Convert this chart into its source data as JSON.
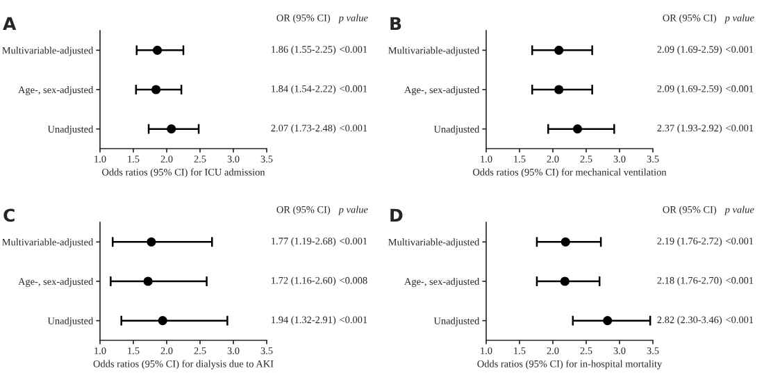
{
  "chart_data": [
    {
      "type": "scatter",
      "title": "A",
      "orientation": "horizontal",
      "xlabel": "Odds ratios (95% CI) for ICU admission",
      "categories": [
        "Multivariable-adjusted",
        "Age-, sex-adjusted",
        "Unadjusted"
      ],
      "series": [
        {
          "color": "#000000",
          "values": [
            1.86,
            1.84,
            2.07
          ],
          "errors": [
            [
              1.55,
              2.25
            ],
            [
              1.54,
              2.22
            ],
            [
              1.73,
              2.48
            ]
          ]
        }
      ],
      "xlim": [
        1.0,
        3.5
      ],
      "xticks": [
        {
          "value": 1.0,
          "label": "1.0"
        },
        {
          "value": 1.5,
          "label": "1.5"
        },
        {
          "value": 2.0,
          "label": "2.0"
        },
        {
          "value": 2.5,
          "label": "2.5"
        },
        {
          "value": 3.0,
          "label": "3.0"
        },
        {
          "value": 3.5,
          "label": "3.5"
        }
      ],
      "marker": "circle",
      "grid": false,
      "legend": false,
      "annotations": [
        "OR (95% CI)",
        "p value",
        "1.86 (1.55-2.25)",
        "<0.001",
        "1.84 (1.54-2.22)",
        "<0.001",
        "2.07 (1.73-2.48)",
        "<0.001"
      ]
    },
    {
      "type": "scatter",
      "title": "B",
      "orientation": "horizontal",
      "xlabel": "Odds ratios (95% CI) for mechanical ventilation",
      "categories": [
        "Multivariable-adjusted",
        "Age-, sex-adjusted",
        "Unadjusted"
      ],
      "series": [
        {
          "color": "#000000",
          "values": [
            2.09,
            2.09,
            2.37
          ],
          "errors": [
            [
              1.69,
              2.59
            ],
            [
              1.69,
              2.59
            ],
            [
              1.93,
              2.92
            ]
          ]
        }
      ],
      "xlim": [
        1.0,
        3.5
      ],
      "xticks": [
        {
          "value": 1.0,
          "label": "1.0"
        },
        {
          "value": 1.5,
          "label": "1.5"
        },
        {
          "value": 2.0,
          "label": "2.0"
        },
        {
          "value": 2.5,
          "label": "2.5"
        },
        {
          "value": 3.0,
          "label": "3.0"
        },
        {
          "value": 3.5,
          "label": "3.5"
        }
      ],
      "marker": "circle",
      "grid": false,
      "legend": false,
      "annotations": [
        "OR (95% CI)",
        "p value",
        "2.09 (1.69-2.59)",
        "<0.001",
        "2.09 (1.69-2.59)",
        "<0.001",
        "2.37 (1.93-2.92)",
        "<0.001"
      ]
    },
    {
      "type": "scatter",
      "title": "C",
      "orientation": "horizontal",
      "xlabel": "Odds ratios (95% CI) for dialysis due to AKI",
      "categories": [
        "Multivariable-adjusted",
        "Age-, sex-adjusted",
        "Unadjusted"
      ],
      "series": [
        {
          "color": "#000000",
          "values": [
            1.77,
            1.72,
            1.94
          ],
          "errors": [
            [
              1.19,
              2.68
            ],
            [
              1.16,
              2.6
            ],
            [
              1.32,
              2.91
            ]
          ]
        }
      ],
      "xlim": [
        1.0,
        3.5
      ],
      "xticks": [
        {
          "value": 1.0,
          "label": "1.0"
        },
        {
          "value": 1.5,
          "label": "1.5"
        },
        {
          "value": 2.0,
          "label": "2.0"
        },
        {
          "value": 2.5,
          "label": "2.5"
        },
        {
          "value": 3.0,
          "label": "3.0"
        },
        {
          "value": 3.5,
          "label": "3.5"
        }
      ],
      "marker": "circle",
      "grid": false,
      "legend": false,
      "annotations": [
        "OR (95% CI)",
        "p value",
        "1.77 (1.19-2.68)",
        "<0.001",
        "1.72 (1.16-2.60)",
        "<0.008",
        "1.94 (1.32-2.91)",
        "<0.001"
      ]
    },
    {
      "type": "scatter",
      "title": "D",
      "orientation": "horizontal",
      "xlabel": "Odds ratios (95% CI) for in-hospital mortality",
      "categories": [
        "Multivariable-adjusted",
        "Age-, sex-adjusted",
        "Unadjusted"
      ],
      "series": [
        {
          "color": "#000000",
          "values": [
            2.19,
            2.18,
            2.82
          ],
          "errors": [
            [
              1.76,
              2.72
            ],
            [
              1.76,
              2.7
            ],
            [
              2.3,
              3.46
            ]
          ]
        }
      ],
      "xlim": [
        1.0,
        3.5
      ],
      "xticks": [
        {
          "value": 1.0,
          "label": "1.0"
        },
        {
          "value": 1.5,
          "label": "1.5"
        },
        {
          "value": 2.0,
          "label": "2.0"
        },
        {
          "value": 2.5,
          "label": "2.5"
        },
        {
          "value": 3.0,
          "label": "3.0"
        },
        {
          "value": 3.5,
          "label": "3.5"
        }
      ],
      "marker": "circle",
      "grid": false,
      "legend": false,
      "annotations": [
        "OR (95% CI)",
        "p value",
        "2.19 (1.76-2.72)",
        "<0.001",
        "2.18 (1.76-2.70)",
        "<0.001",
        "2.82 (2.30-3.46)",
        "<0.001"
      ]
    }
  ]
}
